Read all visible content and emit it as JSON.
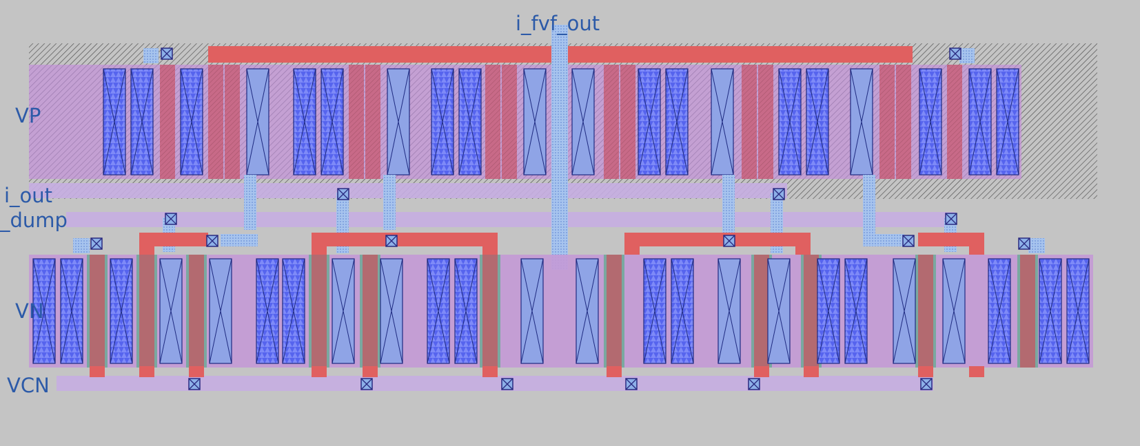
{
  "labels": {
    "i_fvf_out": "i_fvf_out",
    "vp": "VP",
    "i_out": "i_out",
    "dump": "_dump",
    "vn": "VN",
    "vcn": "VCN"
  },
  "colors": {
    "background": "#c4c4c4",
    "poly": "#e06060",
    "metal1": "#b8a8e4",
    "metal2": "#9ec0ee",
    "diffusion": "#4a58e0",
    "via": "#2a2a80",
    "label": "#2c5aa8",
    "nwell": "#7a7a7a",
    "pdiff": "#c49ad6",
    "ndiff": "#7aa8a0"
  }
}
